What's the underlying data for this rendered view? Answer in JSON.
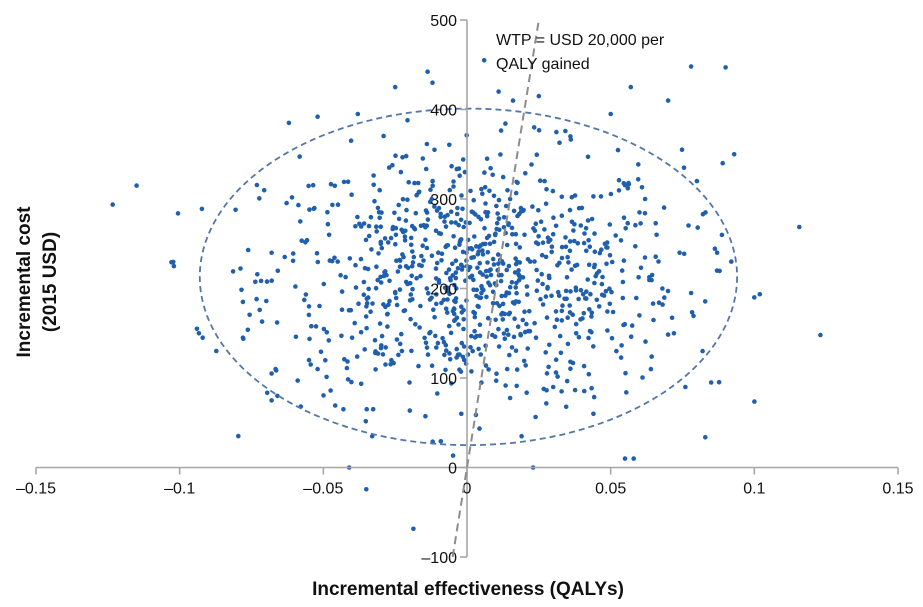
{
  "chart_data": {
    "type": "scatter",
    "xlabel": "Incremental effectiveness (QALYs)",
    "ylabel_line1": "Incremental cost",
    "ylabel_line2": "(2015 USD)",
    "xlim": [
      -0.15,
      0.15
    ],
    "ylim": [
      -100,
      500
    ],
    "x_ticks": [
      -0.15,
      -0.1,
      -0.05,
      0,
      0.05,
      0.1,
      0.15
    ],
    "x_tick_labels": [
      "–0.15",
      "–0.1",
      "–0.05",
      "0",
      "0.05",
      "0.1",
      "0.15"
    ],
    "y_ticks": [
      -100,
      0,
      100,
      200,
      300,
      400,
      500
    ],
    "y_tick_labels": [
      "–100",
      "0",
      "100",
      "200",
      "300",
      "400",
      "500"
    ],
    "point_color": "#1f5fae",
    "ellipse_color": "#5277a8",
    "wtp_line_color": "#8c8c8c",
    "axis_color": "#a6a6a6",
    "wtp_line": {
      "slope": 20000,
      "label_line1": "WTP = USD 20,000 per",
      "label_line2": "QALY gained"
    },
    "ellipse": {
      "cx": 0.0005,
      "cy": 213,
      "rx": 0.0935,
      "ry": 188
    },
    "points_sample": [
      [
        -0.115,
        315
      ],
      [
        -0.102,
        225
      ],
      [
        -0.094,
        155
      ],
      [
        -0.092,
        145
      ],
      [
        -0.078,
        185
      ],
      [
        -0.078,
        145
      ],
      [
        -0.068,
        105
      ],
      [
        -0.068,
        75
      ],
      [
        -0.066,
        80
      ],
      [
        -0.062,
        385
      ],
      [
        -0.058,
        275
      ],
      [
        -0.055,
        180
      ],
      [
        -0.055,
        120
      ],
      [
        -0.052,
        392
      ],
      [
        -0.052,
        110
      ],
      [
        -0.048,
        260
      ],
      [
        -0.045,
        230
      ],
      [
        -0.043,
        65
      ],
      [
        -0.041,
        0
      ],
      [
        -0.04,
        145
      ],
      [
        -0.038,
        395
      ],
      [
        -0.035,
        180
      ],
      [
        -0.033,
        35
      ],
      [
        -0.031,
        290
      ],
      [
        -0.03,
        250
      ],
      [
        -0.028,
        215
      ],
      [
        -0.025,
        425
      ],
      [
        -0.023,
        330
      ],
      [
        -0.022,
        175
      ],
      [
        -0.02,
        95
      ],
      [
        -0.018,
        160
      ],
      [
        -0.016,
        270
      ],
      [
        -0.014,
        200
      ],
      [
        -0.012,
        430
      ],
      [
        -0.01,
        240
      ],
      [
        -0.008,
        140
      ],
      [
        -0.006,
        310
      ],
      [
        -0.004,
        185
      ],
      [
        -0.002,
        60
      ],
      [
        0.0,
        225
      ],
      [
        0.002,
        130
      ],
      [
        0.004,
        280
      ],
      [
        0.005,
        195
      ],
      [
        0.006,
        455
      ],
      [
        0.007,
        345
      ],
      [
        0.008,
        250
      ],
      [
        0.01,
        165
      ],
      [
        0.011,
        420
      ],
      [
        0.012,
        215
      ],
      [
        0.014,
        110
      ],
      [
        0.015,
        300
      ],
      [
        0.016,
        410
      ],
      [
        0.018,
        185
      ],
      [
        0.019,
        35
      ],
      [
        0.02,
        260
      ],
      [
        0.022,
        230
      ],
      [
        0.023,
        0
      ],
      [
        0.024,
        145
      ],
      [
        0.025,
        415
      ],
      [
        0.027,
        320
      ],
      [
        0.028,
        200
      ],
      [
        0.03,
        90
      ],
      [
        0.031,
        270
      ],
      [
        0.033,
        175
      ],
      [
        0.035,
        235
      ],
      [
        0.036,
        370
      ],
      [
        0.038,
        150
      ],
      [
        0.04,
        290
      ],
      [
        0.042,
        210
      ],
      [
        0.044,
        60
      ],
      [
        0.046,
        180
      ],
      [
        0.048,
        250
      ],
      [
        0.05,
        395
      ],
      [
        0.052,
        130
      ],
      [
        0.054,
        220
      ],
      [
        0.055,
        10
      ],
      [
        0.057,
        425
      ],
      [
        0.058,
        10
      ],
      [
        0.06,
        170
      ],
      [
        0.062,
        300
      ],
      [
        0.064,
        110
      ],
      [
        0.066,
        260
      ],
      [
        0.068,
        200
      ],
      [
        0.07,
        410
      ],
      [
        0.072,
        150
      ],
      [
        0.074,
        240
      ],
      [
        0.076,
        90
      ],
      [
        0.078,
        448
      ],
      [
        0.078,
        195
      ],
      [
        0.08,
        320
      ],
      [
        0.082,
        130
      ],
      [
        0.083,
        285
      ],
      [
        0.085,
        95
      ],
      [
        0.087,
        220
      ],
      [
        0.089,
        340
      ],
      [
        0.09,
        447
      ],
      [
        0.092,
        230
      ],
      [
        0.093,
        350
      ],
      [
        0.1,
        190
      ],
      [
        0.123,
        148
      ]
    ]
  }
}
